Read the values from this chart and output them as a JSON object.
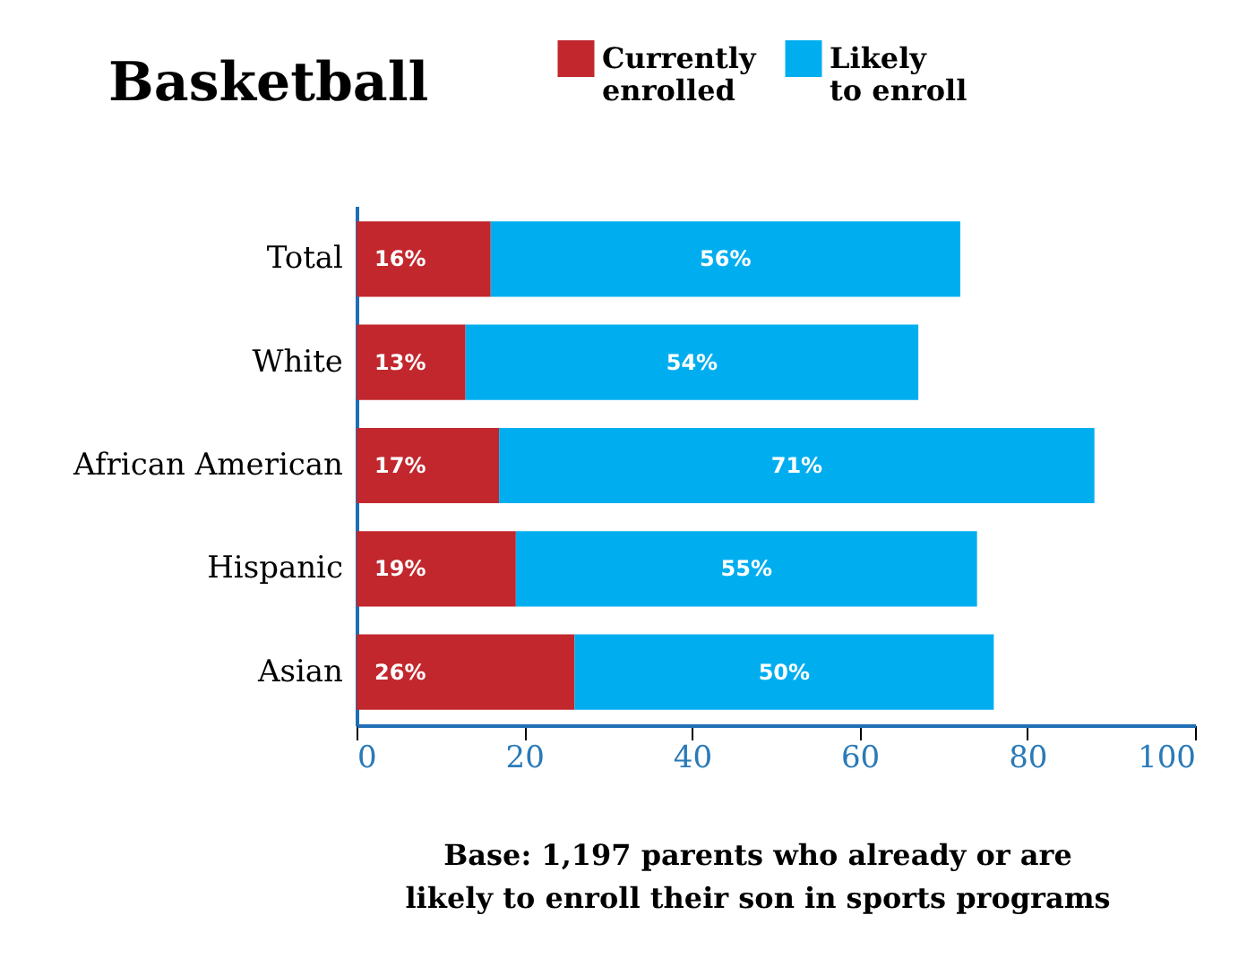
{
  "chart_data": {
    "type": "bar",
    "orientation": "horizontal",
    "stacked": true,
    "title": "Basketball",
    "categories": [
      "Total",
      "White",
      "African American",
      "Hispanic",
      "Asian"
    ],
    "series": [
      {
        "name": "Currently enrolled",
        "color": "#c1272d",
        "values": [
          16,
          13,
          17,
          19,
          26
        ],
        "value_labels": [
          "16%",
          "13%",
          "17%",
          "19%",
          "26%"
        ]
      },
      {
        "name": "Likely to enroll",
        "color": "#00aeef",
        "values": [
          56,
          54,
          71,
          55,
          50
        ],
        "value_labels": [
          "56%",
          "54%",
          "71%",
          "55%",
          "50%"
        ]
      }
    ],
    "xlim": [
      0,
      100
    ],
    "xticks": [
      0,
      20,
      40,
      60,
      80,
      100
    ],
    "grid": false,
    "legend": "top right",
    "annotations": [
      "Base: 1,197 parents who already or are likely to enroll their son in sports programs"
    ]
  }
}
